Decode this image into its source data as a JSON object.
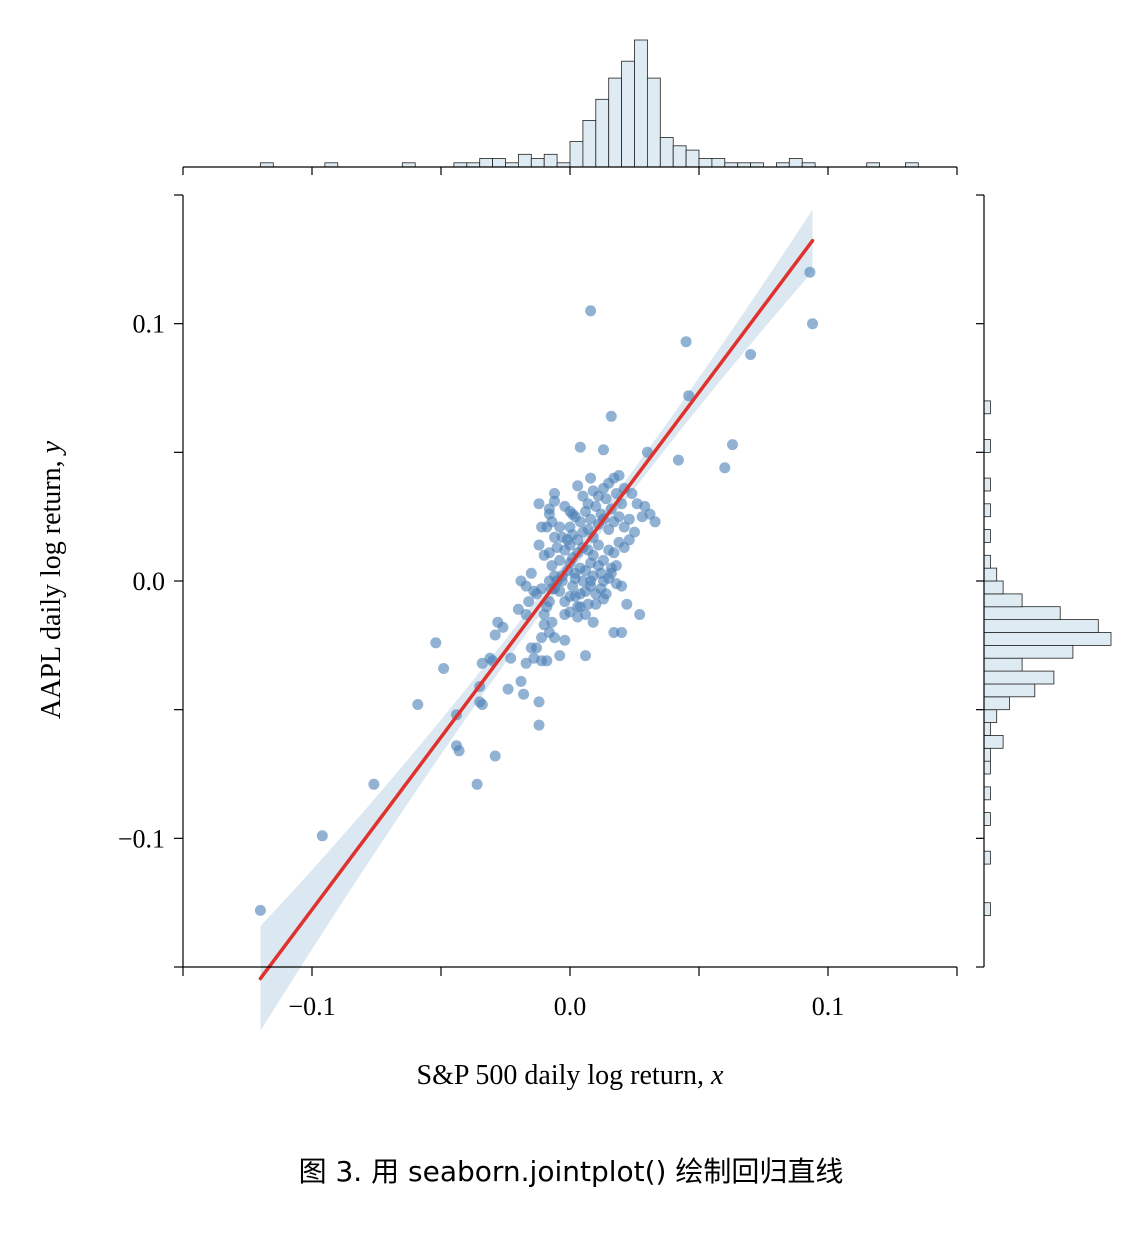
{
  "chart_data": {
    "type": "scatter",
    "subtype": "jointplot_with_regression",
    "xlabel": "S&P 500 daily log return, ",
    "xlabel_var": "x",
    "ylabel": "AAPL daily log return, ",
    "ylabel_var": "y",
    "xlim": [
      -0.15,
      0.15
    ],
    "ylim": [
      -0.15,
      0.15
    ],
    "x_ticks": [
      -0.1,
      0.0,
      0.1
    ],
    "x_tick_labels": [
      "−0.1",
      "0.0",
      "0.1"
    ],
    "y_ticks": [
      -0.1,
      0.0,
      0.1
    ],
    "y_tick_labels": [
      "−0.1",
      "0.0",
      "0.1"
    ],
    "minor_ticks": [
      -0.15,
      -0.05,
      0.05,
      0.15
    ],
    "grid": false,
    "colors": {
      "points": "#4a7fb5",
      "line": "#e0322c",
      "ci_band": "#cfe0ee",
      "hist_fill": "#deebf3",
      "hist_edge": "#222222"
    },
    "regression": {
      "slope": 1.34,
      "intercept": 0.0063,
      "x_range": [
        -0.12,
        0.094
      ]
    },
    "points": [
      [
        -0.12,
        -0.128
      ],
      [
        -0.096,
        -0.099
      ],
      [
        -0.076,
        -0.079
      ],
      [
        -0.059,
        -0.048
      ],
      [
        -0.052,
        -0.024
      ],
      [
        -0.049,
        -0.034
      ],
      [
        -0.044,
        -0.052
      ],
      [
        -0.044,
        -0.064
      ],
      [
        -0.043,
        -0.066
      ],
      [
        -0.036,
        -0.079
      ],
      [
        -0.035,
        -0.047
      ],
      [
        -0.034,
        -0.048
      ],
      [
        -0.035,
        -0.041
      ],
      [
        -0.034,
        -0.032
      ],
      [
        -0.031,
        -0.03
      ],
      [
        -0.03,
        -0.031
      ],
      [
        -0.029,
        -0.068
      ],
      [
        -0.028,
        -0.016
      ],
      [
        -0.026,
        -0.018
      ],
      [
        -0.029,
        -0.021
      ],
      [
        -0.024,
        -0.042
      ],
      [
        -0.023,
        -0.03
      ],
      [
        -0.02,
        -0.011
      ],
      [
        -0.019,
        -0.039
      ],
      [
        -0.018,
        -0.044
      ],
      [
        -0.017,
        -0.013
      ],
      [
        -0.017,
        -0.032
      ],
      [
        -0.015,
        -0.026
      ],
      [
        -0.014,
        -0.03
      ],
      [
        -0.013,
        -0.026
      ],
      [
        -0.012,
        -0.047
      ],
      [
        -0.012,
        -0.056
      ],
      [
        -0.011,
        -0.022
      ],
      [
        -0.011,
        -0.031
      ],
      [
        -0.01,
        -0.013
      ],
      [
        -0.009,
        -0.031
      ],
      [
        -0.008,
        -0.02
      ],
      [
        -0.007,
        -0.016
      ],
      [
        -0.006,
        -0.022
      ],
      [
        -0.004,
        -0.029
      ],
      [
        -0.002,
        -0.023
      ],
      [
        0.006,
        -0.029
      ],
      [
        -0.019,
        0.0
      ],
      [
        -0.017,
        -0.002
      ],
      [
        -0.013,
        -0.005
      ],
      [
        -0.011,
        -0.003
      ],
      [
        -0.009,
        -0.01
      ],
      [
        -0.008,
        -0.008
      ],
      [
        -0.007,
        -0.003
      ],
      [
        -0.006,
        0.002
      ],
      [
        -0.005,
        0.0
      ],
      [
        -0.004,
        -0.004
      ],
      [
        -0.003,
        0.0
      ],
      [
        -0.002,
        -0.008
      ],
      [
        -0.001,
        0.004
      ],
      [
        0.0,
        -0.006
      ],
      [
        0.001,
        -0.002
      ],
      [
        0.002,
        0.003
      ],
      [
        0.003,
        -0.01
      ],
      [
        0.004,
        -0.005
      ],
      [
        0.005,
        0.0
      ],
      [
        0.006,
        0.004
      ],
      [
        0.007,
        -0.009
      ],
      [
        0.008,
        -0.002
      ],
      [
        0.009,
        0.002
      ],
      [
        0.01,
        -0.005
      ],
      [
        0.011,
        0.006
      ],
      [
        0.012,
        -0.003
      ],
      [
        0.013,
        -0.007
      ],
      [
        0.015,
        0.001
      ],
      [
        0.016,
        0.003
      ],
      [
        0.018,
        -0.001
      ],
      [
        0.02,
        -0.002
      ],
      [
        0.022,
        -0.009
      ],
      [
        -0.008,
        0.0
      ],
      [
        -0.006,
        -0.003
      ],
      [
        -0.003,
        0.002
      ],
      [
        0.0,
        0.007
      ],
      [
        0.002,
        -0.006
      ],
      [
        0.004,
        0.005
      ],
      [
        0.006,
        -0.004
      ],
      [
        0.008,
        0.007
      ],
      [
        0.01,
        -0.009
      ],
      [
        0.012,
        0.003
      ],
      [
        0.014,
        -0.005
      ],
      [
        0.016,
        0.005
      ],
      [
        0.001,
        0.009
      ],
      [
        0.003,
        0.011
      ],
      [
        0.005,
        0.013
      ],
      [
        0.007,
        0.012
      ],
      [
        0.009,
        0.01
      ],
      [
        0.011,
        0.014
      ],
      [
        0.013,
        0.008
      ],
      [
        0.015,
        0.012
      ],
      [
        0.017,
        0.011
      ],
      [
        0.019,
        0.015
      ],
      [
        0.021,
        0.013
      ],
      [
        0.023,
        0.016
      ],
      [
        0.0,
        0.014
      ],
      [
        -0.002,
        0.012
      ],
      [
        -0.004,
        0.008
      ],
      [
        -0.006,
        0.017
      ],
      [
        -0.008,
        0.011
      ],
      [
        -0.01,
        0.01
      ],
      [
        -0.007,
        0.006
      ],
      [
        -0.005,
        0.013
      ],
      [
        -0.003,
        0.017
      ],
      [
        -0.001,
        0.016
      ],
      [
        0.001,
        0.018
      ],
      [
        0.003,
        0.016
      ],
      [
        0.005,
        0.019
      ],
      [
        0.007,
        0.02
      ],
      [
        0.009,
        0.017
      ],
      [
        0.011,
        0.022
      ],
      [
        0.013,
        0.024
      ],
      [
        0.015,
        0.02
      ],
      [
        0.017,
        0.023
      ],
      [
        0.019,
        0.025
      ],
      [
        0.021,
        0.021
      ],
      [
        0.023,
        0.024
      ],
      [
        0.025,
        0.019
      ],
      [
        -0.009,
        0.021
      ],
      [
        -0.007,
        0.023
      ],
      [
        -0.004,
        0.021
      ],
      [
        0.0,
        0.021
      ],
      [
        0.002,
        0.025
      ],
      [
        0.004,
        0.023
      ],
      [
        0.006,
        0.027
      ],
      [
        0.008,
        0.024
      ],
      [
        0.01,
        0.029
      ],
      [
        0.012,
        0.026
      ],
      [
        0.014,
        0.032
      ],
      [
        0.016,
        0.028
      ],
      [
        0.018,
        0.034
      ],
      [
        0.02,
        0.03
      ],
      [
        -0.012,
        0.03
      ],
      [
        -0.011,
        0.021
      ],
      [
        -0.008,
        0.026
      ],
      [
        -0.006,
        0.031
      ],
      [
        -0.002,
        0.029
      ],
      [
        0.001,
        0.026
      ],
      [
        0.003,
        0.037
      ],
      [
        0.005,
        0.033
      ],
      [
        0.007,
        0.03
      ],
      [
        0.009,
        0.035
      ],
      [
        0.011,
        0.033
      ],
      [
        0.013,
        0.036
      ],
      [
        0.015,
        0.038
      ],
      [
        0.017,
        0.04
      ],
      [
        0.019,
        0.041
      ],
      [
        0.021,
        0.036
      ],
      [
        0.024,
        0.034
      ],
      [
        0.026,
        0.03
      ],
      [
        0.028,
        0.025
      ],
      [
        0.029,
        0.029
      ],
      [
        0.031,
        0.026
      ],
      [
        0.033,
        0.023
      ],
      [
        0.03,
        0.05
      ],
      [
        0.027,
        -0.013
      ],
      [
        0.02,
        -0.02
      ],
      [
        0.017,
        -0.02
      ],
      [
        0.042,
        0.047
      ],
      [
        0.046,
        0.072
      ],
      [
        0.045,
        0.093
      ],
      [
        0.06,
        0.044
      ],
      [
        0.063,
        0.053
      ],
      [
        0.07,
        0.088
      ],
      [
        0.093,
        0.12
      ],
      [
        0.094,
        0.1
      ],
      [
        0.008,
        0.105
      ],
      [
        0.016,
        0.064
      ],
      [
        0.004,
        0.052
      ],
      [
        0.013,
        0.051
      ],
      [
        0.008,
        0.04
      ],
      [
        -0.008,
        0.028
      ],
      [
        -0.006,
        0.034
      ],
      [
        0.0,
        0.027
      ],
      [
        -0.012,
        0.014
      ],
      [
        -0.014,
        -0.004
      ],
      [
        -0.016,
        -0.008
      ],
      [
        -0.015,
        0.003
      ],
      [
        0.002,
        0.001
      ],
      [
        0.008,
        0.0
      ],
      [
        0.013,
        0.0
      ],
      [
        0.018,
        0.006
      ],
      [
        0.006,
        -0.013
      ],
      [
        0.003,
        -0.014
      ],
      [
        -0.002,
        -0.013
      ],
      [
        0.0,
        -0.012
      ],
      [
        0.009,
        -0.016
      ],
      [
        -0.01,
        -0.017
      ],
      [
        0.004,
        -0.01
      ]
    ],
    "hist_bin_width": 0.005,
    "x_hist_start": -0.12,
    "x_hist_counts": [
      1,
      0,
      0,
      0,
      0,
      1,
      0,
      0,
      0,
      0,
      0,
      1,
      0,
      0,
      0,
      1,
      1,
      2,
      2,
      1,
      3,
      2,
      3,
      1,
      6,
      11,
      16,
      21,
      25,
      30,
      21,
      7,
      5,
      4,
      2,
      2,
      1,
      1,
      1,
      0,
      1,
      2,
      1,
      0,
      0,
      0,
      0,
      1,
      0,
      0,
      1,
      0,
      0
    ],
    "y_hist_start": -0.13,
    "y_hist_counts": [
      1,
      0,
      0,
      0,
      1,
      0,
      0,
      1,
      0,
      1,
      0,
      1,
      1,
      3,
      1,
      2,
      4,
      8,
      11,
      6,
      14,
      20,
      18,
      12,
      6,
      3,
      2,
      1,
      0,
      1,
      0,
      1,
      0,
      1,
      0,
      0,
      1,
      0,
      0,
      1
    ]
  },
  "caption": "图 3. 用 seaborn.jointplot() 绘制回归直线"
}
